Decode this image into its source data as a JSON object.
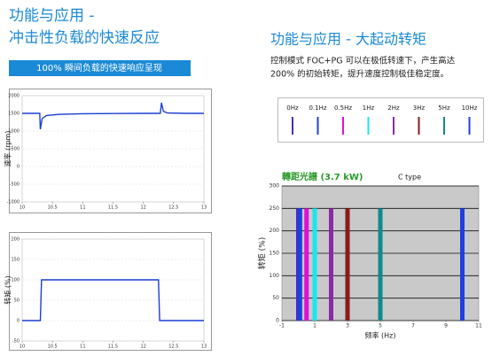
{
  "left": {
    "title": [
      "功能与应用 -",
      "冲击性负载的快速反应"
    ],
    "banner": "100% 瞬间负载的快速响应呈现"
  },
  "right": {
    "title": "功能与应用 - 大起动转矩",
    "body": [
      "控制模式 FOC+PG 可以在极低转速下，产生高达",
      "200% 的初始转矩，提升速度控制极佳稳定度。"
    ]
  },
  "chart_data": [
    {
      "type": "line",
      "ylabel": "速率 (rpm)",
      "color": "#1a3fd6",
      "x": [
        10,
        10.2,
        10.29,
        10.3,
        10.33,
        10.4,
        10.6,
        11,
        11.5,
        12,
        12.28,
        12.3,
        12.33,
        12.4,
        12.7,
        13
      ],
      "values": [
        1500,
        1500,
        1500,
        1050,
        1350,
        1440,
        1470,
        1490,
        1495,
        1500,
        1500,
        1800,
        1560,
        1510,
        1500,
        1500
      ],
      "xlim": [
        10,
        13
      ],
      "xticks": [
        10,
        10.5,
        11,
        11.5,
        12,
        12.5,
        13
      ],
      "ylim": [
        -1000,
        2000
      ],
      "yticks": [
        -1000,
        -500,
        0,
        500,
        1000,
        1500,
        2000
      ],
      "grid": true
    },
    {
      "type": "line",
      "ylabel": "转矩 (%)",
      "color": "#1a3fd6",
      "x": [
        10,
        10.3,
        10.32,
        12.25,
        12.27,
        13
      ],
      "values": [
        0,
        0,
        100,
        100,
        0,
        0
      ],
      "xlim": [
        10,
        13
      ],
      "xticks": [
        10,
        10.5,
        11,
        11.5,
        12,
        12.5,
        13
      ],
      "ylim": [
        -50,
        200
      ],
      "yticks": [
        -50,
        0,
        50,
        100,
        150,
        200
      ],
      "grid": true
    },
    {
      "type": "strip",
      "title": "轉距光譜 (3.7 kW)",
      "subtitle": "C type",
      "xlabel": "频率 (Hz)",
      "ylabel": "转矩 (%)",
      "xlim": [
        -1,
        11
      ],
      "xticks": [
        -1,
        1,
        3,
        5,
        7,
        9,
        11
      ],
      "ylim": [
        0,
        300
      ],
      "yticks": [
        0,
        50,
        100,
        150,
        200,
        250,
        300
      ],
      "grid": true,
      "series": [
        {
          "name": "0Hz",
          "color": "#4b2bbf",
          "x": 0,
          "values": [
            0,
            250
          ]
        },
        {
          "name": "0.1Hz",
          "color": "#1f3fe0",
          "x": 0.1,
          "values": [
            0,
            250
          ]
        },
        {
          "name": "0.5Hz",
          "color": "#e010d8",
          "x": 0.5,
          "values": [
            0,
            250
          ]
        },
        {
          "name": "1Hz",
          "color": "#19e6f0",
          "x": 1,
          "values": [
            0,
            250
          ]
        },
        {
          "name": "2Hz",
          "color": "#8a2aa8",
          "x": 2,
          "values": [
            0,
            250
          ]
        },
        {
          "name": "3Hz",
          "color": "#8b1a1a",
          "x": 3,
          "values": [
            0,
            250
          ]
        },
        {
          "name": "5Hz",
          "color": "#108a8a",
          "x": 5,
          "values": [
            0,
            250
          ]
        },
        {
          "name": "10Hz",
          "color": "#1f3fe0",
          "x": 10,
          "values": [
            0,
            250
          ]
        }
      ]
    }
  ]
}
